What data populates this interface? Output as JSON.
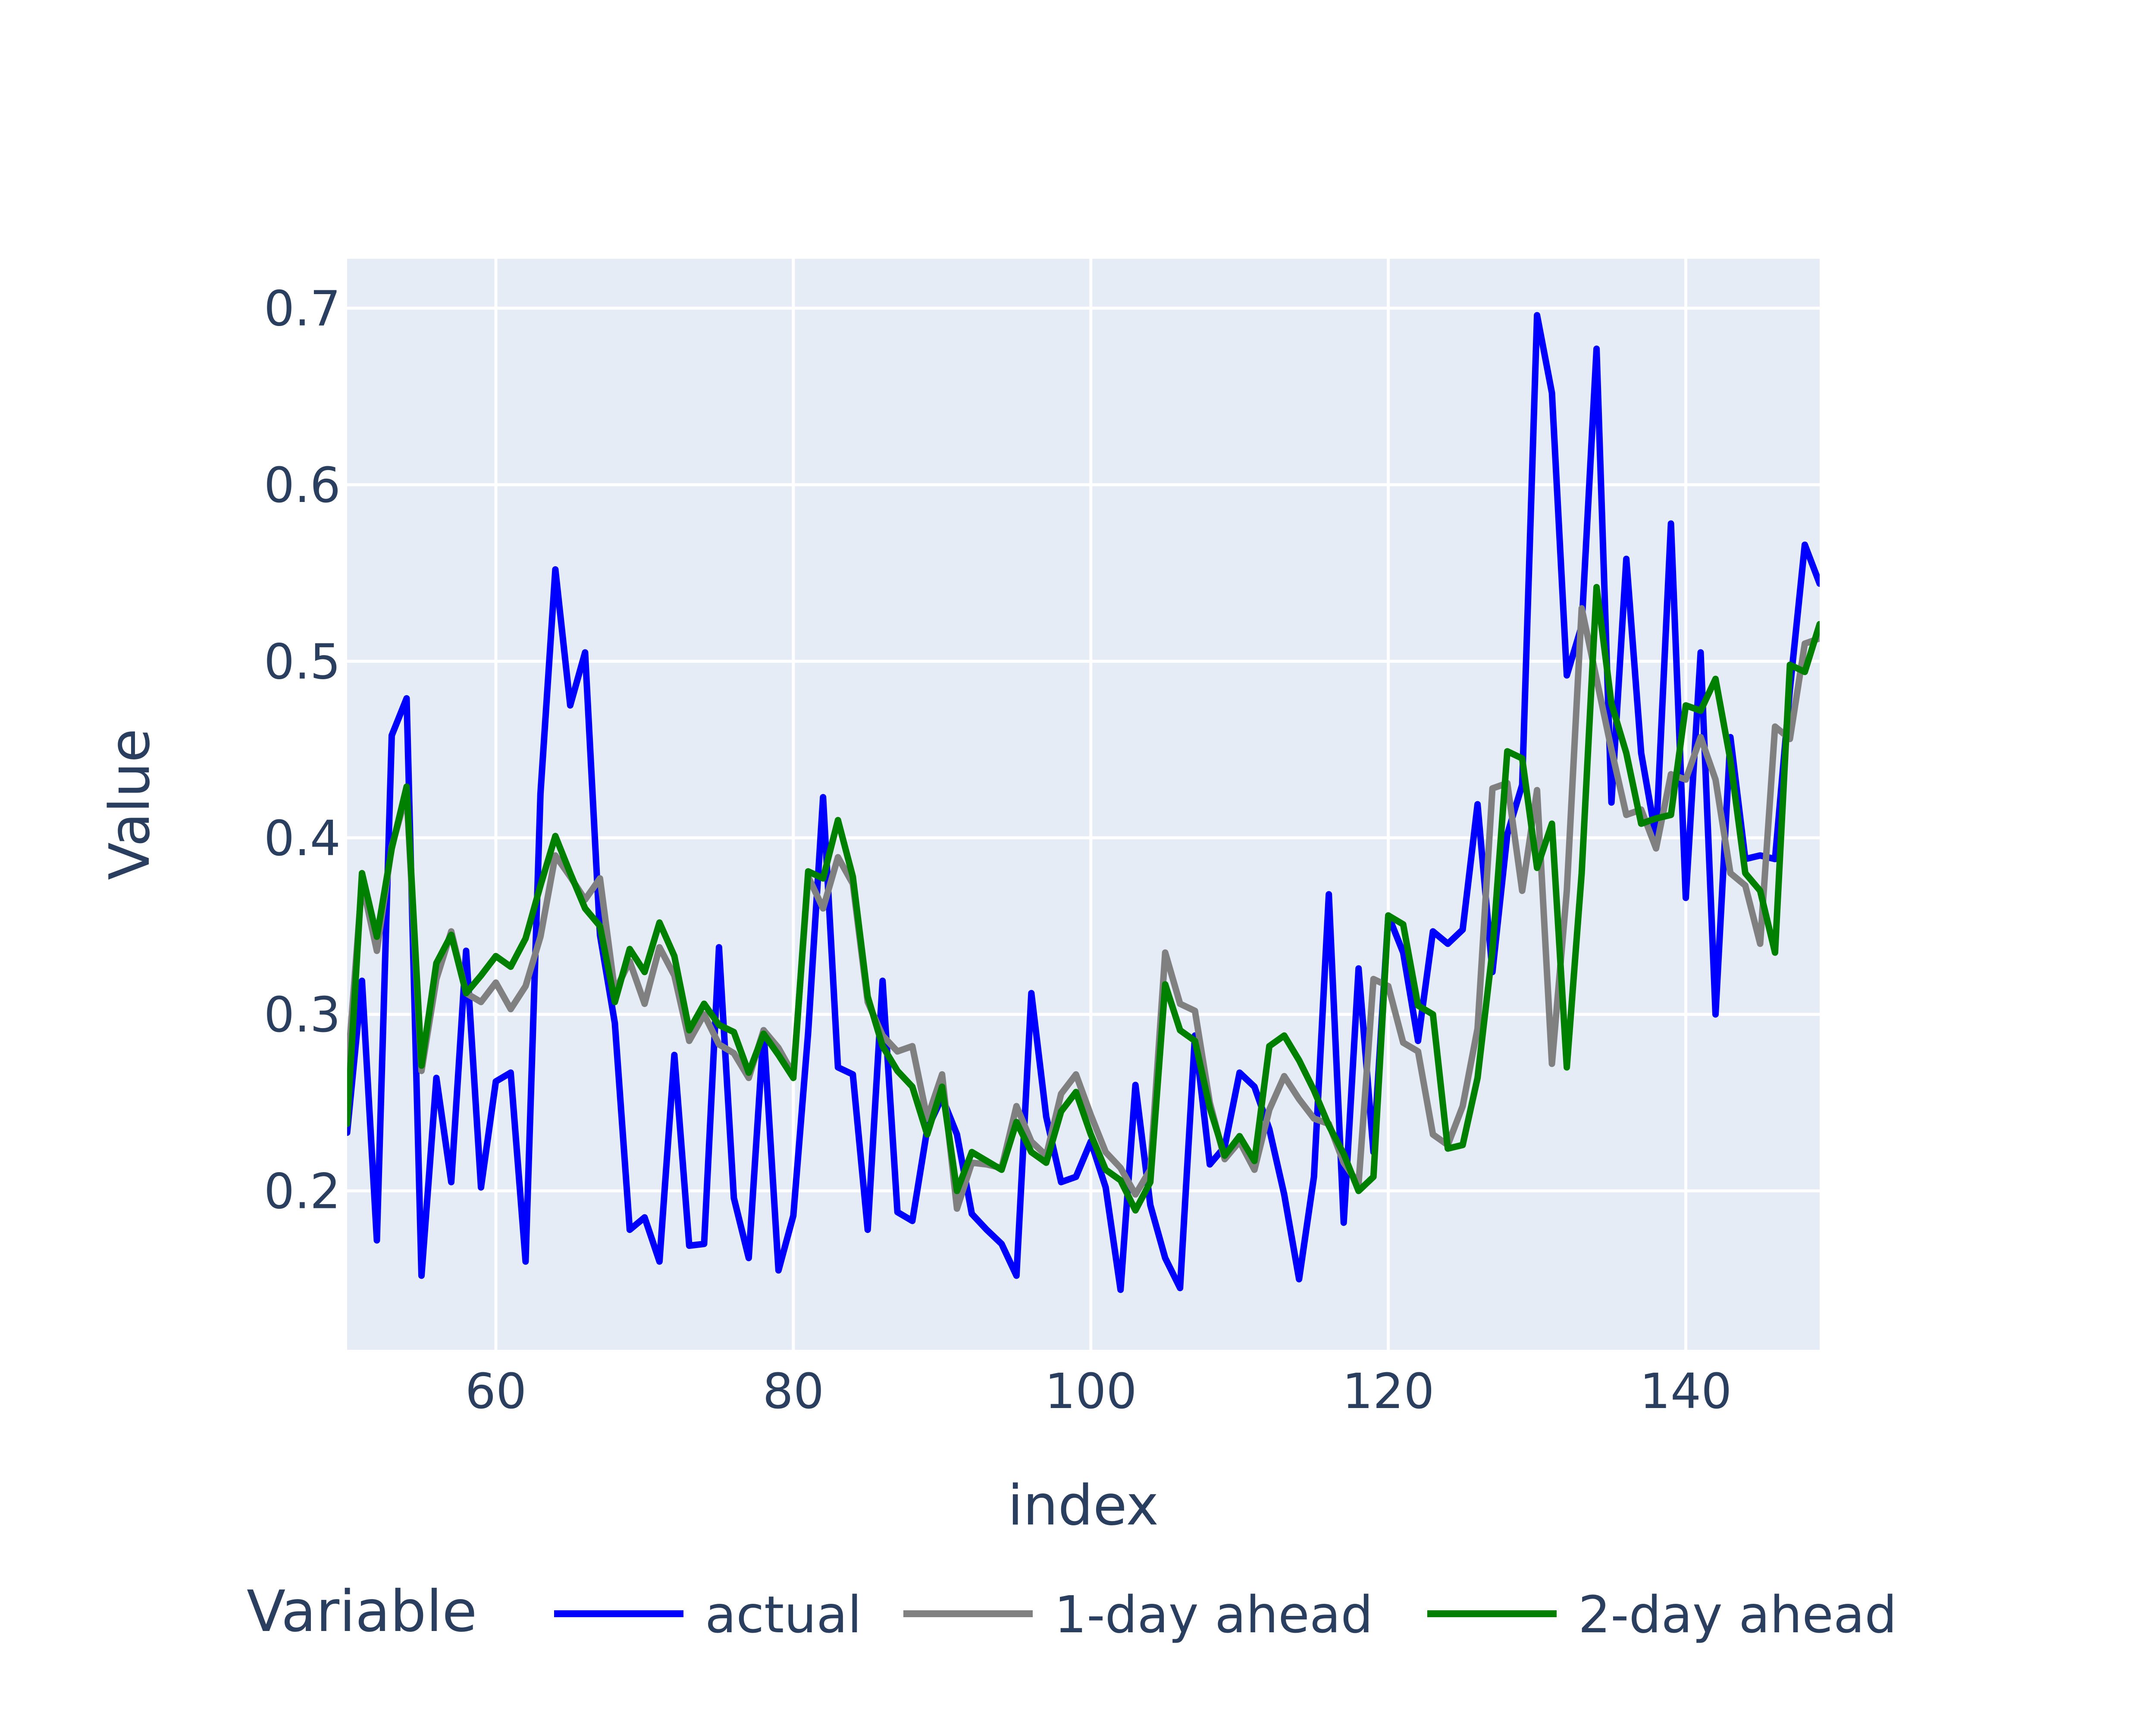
{
  "chart_data": {
    "type": "line",
    "title": "",
    "xlabel": "index",
    "ylabel": "Value",
    "xlim": [
      50,
      149
    ],
    "ylim": [
      0.11,
      0.728
    ],
    "grid": true,
    "x_ticks": [
      60,
      80,
      100,
      120,
      140
    ],
    "y_ticks": [
      0.2,
      0.3,
      0.4,
      0.5,
      0.6,
      0.7
    ],
    "legend": {
      "title": "Variable",
      "placement": "bottom"
    },
    "x": [
      50,
      51,
      52,
      53,
      54,
      55,
      56,
      57,
      58,
      59,
      60,
      61,
      62,
      63,
      64,
      65,
      66,
      67,
      68,
      69,
      70,
      71,
      72,
      73,
      74,
      75,
      76,
      77,
      78,
      79,
      80,
      81,
      82,
      83,
      84,
      85,
      86,
      87,
      88,
      89,
      90,
      91,
      92,
      93,
      94,
      95,
      96,
      97,
      98,
      99,
      100,
      101,
      102,
      103,
      104,
      105,
      106,
      107,
      108,
      109,
      110,
      111,
      112,
      113,
      114,
      115,
      116,
      117,
      118,
      119,
      120,
      121,
      122,
      123,
      124,
      125,
      126,
      127,
      128,
      129,
      130,
      131,
      132,
      133,
      134,
      135,
      136,
      137,
      138,
      139,
      140,
      141,
      142,
      143,
      144,
      145,
      146,
      147,
      148,
      149
    ],
    "series": [
      {
        "name": "actual",
        "color": "#0000ff",
        "values": [
          0.233,
          0.319,
          0.172,
          0.458,
          0.479,
          0.152,
          0.264,
          0.205,
          0.336,
          0.202,
          0.262,
          0.267,
          0.16,
          0.425,
          0.552,
          0.475,
          0.505,
          0.345,
          0.295,
          0.178,
          0.185,
          0.16,
          0.277,
          0.169,
          0.17,
          0.338,
          0.196,
          0.162,
          0.291,
          0.155,
          0.186,
          0.29,
          0.423,
          0.27,
          0.266,
          0.178,
          0.319,
          0.188,
          0.183,
          0.235,
          0.253,
          0.232,
          0.187,
          0.178,
          0.17,
          0.152,
          0.312,
          0.242,
          0.205,
          0.208,
          0.228,
          0.202,
          0.144,
          0.26,
          0.192,
          0.162,
          0.145,
          0.288,
          0.215,
          0.225,
          0.267,
          0.259,
          0.235,
          0.198,
          0.15,
          0.208,
          0.368,
          0.182,
          0.326,
          0.222,
          0.356,
          0.335,
          0.285,
          0.347,
          0.34,
          0.348,
          0.419,
          0.324,
          0.402,
          0.43,
          0.696,
          0.652,
          0.492,
          0.52,
          0.677,
          0.42,
          0.558,
          0.448,
          0.4,
          0.578,
          0.366,
          0.505,
          0.3,
          0.457,
          0.388,
          0.39,
          0.388,
          0.484,
          0.566,
          0.544
        ]
      },
      {
        "name": "1-day ahead",
        "color": "#808080",
        "values": [
          0.265,
          0.375,
          0.336,
          0.395,
          0.425,
          0.268,
          0.32,
          0.347,
          0.312,
          0.307,
          0.318,
          0.303,
          0.316,
          0.344,
          0.39,
          0.378,
          0.365,
          0.377,
          0.313,
          0.33,
          0.306,
          0.338,
          0.322,
          0.285,
          0.3,
          0.283,
          0.278,
          0.264,
          0.291,
          0.281,
          0.266,
          0.378,
          0.36,
          0.389,
          0.374,
          0.307,
          0.288,
          0.279,
          0.282,
          0.241,
          0.266,
          0.19,
          0.216,
          0.215,
          0.213,
          0.248,
          0.228,
          0.22,
          0.255,
          0.266,
          0.243,
          0.222,
          0.213,
          0.198,
          0.212,
          0.335,
          0.306,
          0.302,
          0.25,
          0.218,
          0.228,
          0.212,
          0.246,
          0.265,
          0.252,
          0.241,
          0.238,
          0.216,
          0.204,
          0.32,
          0.316,
          0.284,
          0.279,
          0.232,
          0.226,
          0.248,
          0.292,
          0.428,
          0.431,
          0.37,
          0.427,
          0.272,
          0.37,
          0.53,
          0.49,
          0.45,
          0.413,
          0.416,
          0.394,
          0.436,
          0.433,
          0.457,
          0.433,
          0.38,
          0.373,
          0.34,
          0.463,
          0.456,
          0.51,
          0.513
        ]
      },
      {
        "name": "2-day ahead",
        "color": "#008000",
        "values": [
          0.238,
          0.38,
          0.344,
          0.394,
          0.429,
          0.271,
          0.329,
          0.345,
          0.312,
          0.322,
          0.333,
          0.327,
          0.343,
          0.373,
          0.401,
          0.38,
          0.36,
          0.35,
          0.307,
          0.337,
          0.324,
          0.352,
          0.333,
          0.291,
          0.306,
          0.294,
          0.29,
          0.267,
          0.289,
          0.277,
          0.264,
          0.381,
          0.377,
          0.41,
          0.378,
          0.31,
          0.282,
          0.268,
          0.259,
          0.232,
          0.259,
          0.2,
          0.222,
          0.217,
          0.212,
          0.239,
          0.222,
          0.216,
          0.245,
          0.256,
          0.232,
          0.212,
          0.206,
          0.189,
          0.205,
          0.317,
          0.291,
          0.285,
          0.247,
          0.22,
          0.231,
          0.217,
          0.282,
          0.288,
          0.274,
          0.257,
          0.237,
          0.221,
          0.2,
          0.208,
          0.356,
          0.351,
          0.305,
          0.3,
          0.224,
          0.226,
          0.264,
          0.336,
          0.449,
          0.445,
          0.383,
          0.408,
          0.27,
          0.38,
          0.542,
          0.476,
          0.448,
          0.408,
          0.411,
          0.413,
          0.475,
          0.472,
          0.49,
          0.444,
          0.38,
          0.37,
          0.335,
          0.498,
          0.494,
          0.521
        ]
      }
    ]
  }
}
